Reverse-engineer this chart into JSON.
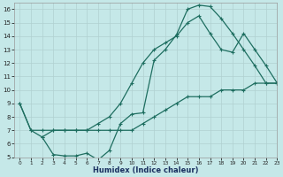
{
  "xlabel": "Humidex (Indice chaleur)",
  "bg_color": "#c5e8e8",
  "grid_color": "#b0d0d0",
  "line_color": "#1e6e60",
  "xlim": [
    -0.5,
    23
  ],
  "ylim": [
    5,
    16.5
  ],
  "xticks": [
    0,
    1,
    2,
    3,
    4,
    5,
    6,
    7,
    8,
    9,
    10,
    11,
    12,
    13,
    14,
    15,
    16,
    17,
    18,
    19,
    20,
    21,
    22,
    23
  ],
  "yticks": [
    5,
    6,
    7,
    8,
    9,
    10,
    11,
    12,
    13,
    14,
    15,
    16
  ],
  "curve1_x": [
    0,
    1,
    2,
    3,
    4,
    5,
    6,
    7,
    8,
    9,
    10,
    11,
    12,
    13,
    14,
    15,
    16,
    17,
    18,
    19,
    20,
    21,
    22,
    23
  ],
  "curve1_y": [
    9.0,
    7.0,
    7.0,
    7.0,
    7.0,
    7.0,
    7.0,
    7.0,
    7.0,
    7.0,
    7.0,
    7.5,
    8.0,
    8.5,
    9.0,
    9.5,
    9.5,
    9.5,
    10.0,
    10.0,
    10.0,
    10.5,
    10.5,
    10.5
  ],
  "curve2_x": [
    0,
    1,
    2,
    3,
    4,
    5,
    6,
    7,
    8,
    9,
    10,
    11,
    12,
    13,
    14,
    15,
    16,
    17,
    18,
    19,
    20,
    21,
    22,
    23
  ],
  "curve2_y": [
    9.0,
    7.0,
    6.5,
    5.2,
    5.1,
    5.1,
    5.3,
    4.8,
    5.5,
    7.5,
    8.2,
    8.3,
    12.2,
    13.0,
    14.1,
    16.0,
    16.3,
    16.2,
    15.3,
    14.2,
    13.0,
    11.8,
    10.5,
    10.5
  ],
  "curve3_x": [
    2,
    3,
    4,
    5,
    6,
    7,
    8,
    9,
    10,
    11,
    12,
    13,
    14,
    15,
    16,
    17,
    18,
    19,
    20,
    21,
    22,
    23
  ],
  "curve3_y": [
    6.5,
    7.0,
    7.0,
    7.0,
    7.0,
    7.5,
    8.0,
    9.0,
    10.5,
    12.0,
    13.0,
    13.5,
    14.0,
    15.0,
    15.5,
    14.2,
    13.0,
    12.8,
    14.2,
    13.0,
    11.8,
    10.5
  ]
}
